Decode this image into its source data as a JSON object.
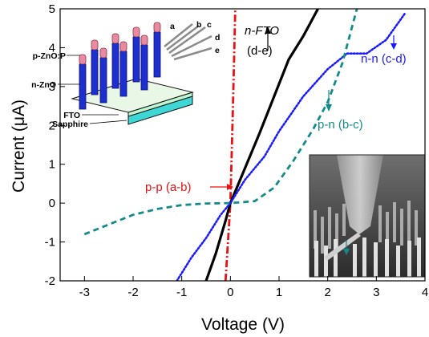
{
  "chart_data": {
    "type": "line",
    "xlabel": "Voltage (V)",
    "ylabel": "Current (μA)",
    "xlim": [
      -3.5,
      4.0
    ],
    "ylim": [
      -2,
      5
    ],
    "xticks": [
      -3,
      -2,
      -1,
      0,
      1,
      2,
      3,
      4
    ],
    "yticks": [
      -2,
      -1,
      0,
      1,
      2,
      3,
      4,
      5
    ],
    "grid": false,
    "series": [
      {
        "name": "p-p (a-b)",
        "color": "#e81010",
        "style": "dash-dot",
        "x": [
          -0.1,
          -0.05,
          0.0,
          0.05,
          0.1
        ],
        "y": [
          -2.0,
          -1.0,
          0.0,
          2.4,
          5.0
        ]
      },
      {
        "name": "n-FTO (d-e)",
        "color": "#000000",
        "style": "solid",
        "x": [
          -0.5,
          -0.3,
          -0.1,
          0.0,
          0.3,
          0.6,
          0.9,
          1.2,
          1.5,
          1.8
        ],
        "y": [
          -2.0,
          -1.3,
          -0.45,
          0.0,
          0.9,
          1.8,
          2.75,
          3.7,
          4.3,
          5.0
        ]
      },
      {
        "name": "n-n (c-d)",
        "color": "#1a1aff",
        "style": "dotted",
        "x": [
          -1.1,
          -0.8,
          -0.5,
          -0.2,
          0.0,
          0.3,
          0.7,
          1.0,
          1.5,
          2.0,
          2.4,
          2.8,
          3.2,
          3.6
        ],
        "y": [
          -2.0,
          -1.4,
          -0.9,
          -0.3,
          0.0,
          0.6,
          1.2,
          1.85,
          2.75,
          3.45,
          3.85,
          3.85,
          4.2,
          4.9
        ]
      },
      {
        "name": "p-n (b-c)",
        "color": "#138a8a",
        "style": "dashed",
        "x": [
          -3.0,
          -2.5,
          -2.0,
          -1.5,
          -1.0,
          -0.5,
          0.0,
          0.5,
          0.9,
          1.3,
          1.7,
          2.0,
          2.3,
          2.6
        ],
        "y": [
          -0.8,
          -0.55,
          -0.3,
          -0.15,
          -0.05,
          -0.01,
          0.0,
          0.05,
          0.4,
          1.1,
          1.9,
          2.6,
          3.6,
          5.0
        ]
      }
    ],
    "annotations": [
      {
        "text": "n-FTO",
        "color": "#000000"
      },
      {
        "text": "(d-e)",
        "color": "#000000"
      },
      {
        "text": "n-n (c-d)",
        "color": "#1a1aff"
      },
      {
        "text": "p-n (b-c)",
        "color": "#138a8a"
      },
      {
        "text": "p-p (a-b)",
        "color": "#e81010"
      }
    ],
    "inset_labels": [
      "a",
      "b",
      "c",
      "d",
      "e",
      "p-ZnO:P",
      "n-ZnO",
      "FTO",
      "Sapphire"
    ]
  }
}
